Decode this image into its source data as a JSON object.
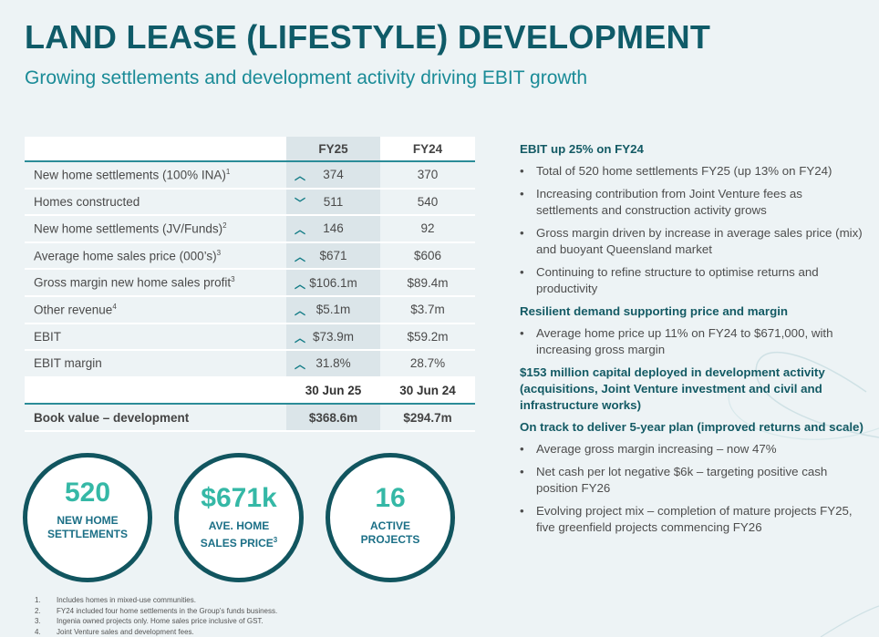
{
  "title": "LAND LEASE (LIFESTYLE) DEVELOPMENT",
  "subtitle": "Growing settlements and development activity driving EBIT growth",
  "table": {
    "headers": [
      "",
      "FY25",
      "FY24"
    ],
    "rows": [
      {
        "label": "New home settlements (100% INA)",
        "sup": "1",
        "trend": "up",
        "fy25": "374",
        "fy24": "370"
      },
      {
        "label": "Homes constructed",
        "sup": "",
        "trend": "down",
        "fy25": "511",
        "fy24": "540"
      },
      {
        "label": "New home settlements (JV/Funds)",
        "sup": "2",
        "trend": "up",
        "fy25": "146",
        "fy24": "92"
      },
      {
        "label": "Average home sales price (000’s)",
        "sup": "3",
        "trend": "up",
        "fy25": "$671",
        "fy24": "$606"
      },
      {
        "label": "Gross margin new home sales profit",
        "sup": "3",
        "trend": "up",
        "fy25": "$106.1m",
        "fy24": "$89.4m"
      },
      {
        "label": "Other revenue",
        "sup": "4",
        "trend": "up",
        "fy25": "$5.1m",
        "fy24": "$3.7m"
      },
      {
        "label": "EBIT",
        "sup": "",
        "trend": "up",
        "fy25": "$73.9m",
        "fy24": "$59.2m"
      },
      {
        "label": "EBIT margin",
        "sup": "",
        "trend": "up",
        "fy25": "31.8%",
        "fy24": "28.7%"
      }
    ],
    "date_headers": [
      "30 Jun 25",
      "30 Jun 24"
    ],
    "book_value": {
      "label": "Book value – development",
      "fy25": "$368.6m",
      "fy24": "$294.7m"
    }
  },
  "stats": [
    {
      "value": "520",
      "label1": "NEW HOME",
      "label2": "SETTLEMENTS",
      "sup": ""
    },
    {
      "value": "$671k",
      "label1": "AVE. HOME",
      "label2": "SALES PRICE",
      "sup": "3"
    },
    {
      "value": "16",
      "label1": "ACTIVE",
      "label2": "PROJECTS",
      "sup": ""
    }
  ],
  "footnotes": [
    {
      "n": "1.",
      "text": "Includes homes in mixed-use communities."
    },
    {
      "n": "2.",
      "text": "FY24 included four home settlements in the Group’s funds business."
    },
    {
      "n": "3.",
      "text": "Ingenia owned projects only. Home sales price inclusive of GST."
    },
    {
      "n": "4.",
      "text": "Joint Venture sales and development fees."
    }
  ],
  "sections": [
    {
      "heading": "EBIT up 25% on FY24",
      "bullets": [
        "Total of 520 home settlements FY25 (up 13% on FY24)",
        "Increasing contribution from Joint Venture fees as settlements and construction activity grows",
        "Gross margin driven by increase in average sales price (mix) and buoyant Queensland market",
        "Continuing to refine structure to optimise returns and productivity"
      ]
    },
    {
      "heading": "Resilient demand supporting price and margin",
      "bullets": [
        "Average home price up 11% on FY24 to $671,000, with increasing gross margin"
      ]
    },
    {
      "heading": "$153 million capital deployed in development activity (acquisitions, Joint Venture investment and civil and infrastructure works)",
      "bullets": []
    },
    {
      "heading": "On track to deliver 5-year plan (improved returns and scale)",
      "bullets": [
        "Average gross margin increasing – now 47%",
        "Net cash per lot negative $6k – targeting positive cash position FY26",
        "Evolving project mix – completion of mature projects FY25, five greenfield projects commencing FY26"
      ]
    }
  ],
  "colors": {
    "title": "#0f5b68",
    "subtitle": "#1a8b97",
    "accent": "#35b8a6",
    "circle_border": "#11555f",
    "background": "#edf3f5"
  }
}
